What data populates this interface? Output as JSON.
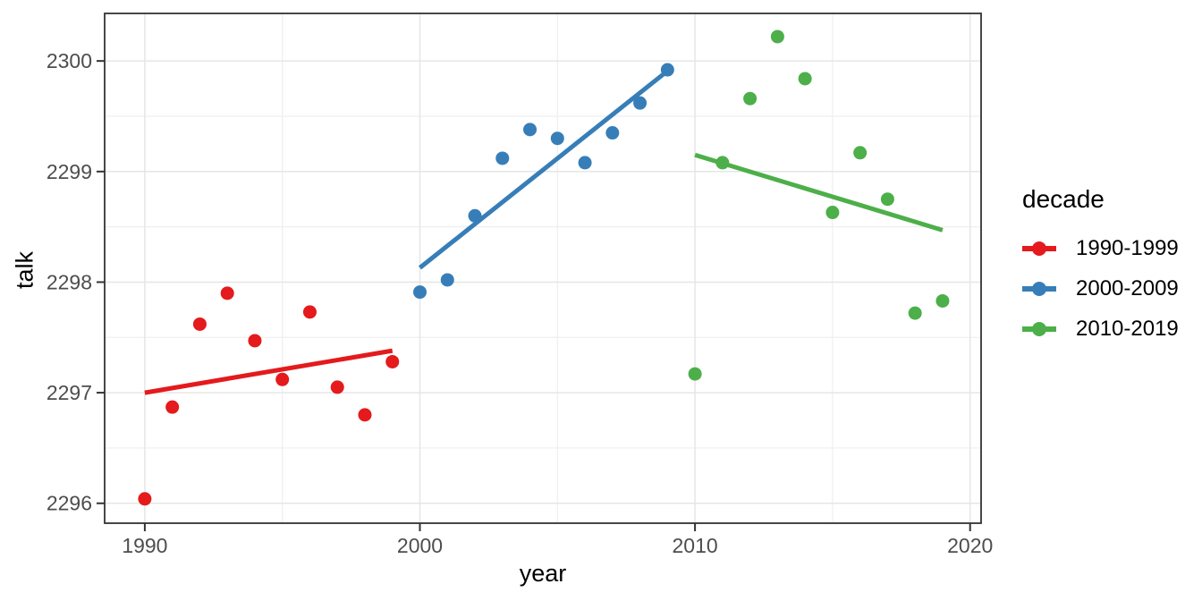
{
  "chart_data": {
    "type": "scatter",
    "title": "",
    "xlabel": "year",
    "ylabel": "talk",
    "xlim": [
      1988.54,
      2020.4
    ],
    "ylim": [
      2295.82,
      2300.43
    ],
    "x_major_ticks": [
      1990,
      2000,
      2010,
      2020
    ],
    "x_minor_ticks": [
      1995,
      2005,
      2015
    ],
    "y_major_ticks": [
      2296,
      2297,
      2298,
      2299,
      2300
    ],
    "y_minor_ticks": [
      2296.5,
      2297.5,
      2298.5,
      2299.5
    ],
    "grid": true,
    "legend_position": "right",
    "legend_title": "decade",
    "series": [
      {
        "name": "1990-1999",
        "color": "#E41A1C",
        "x": [
          1990,
          1991,
          1992,
          1993,
          1994,
          1995,
          1996,
          1997,
          1998,
          1999
        ],
        "y": [
          2296.04,
          2296.87,
          2297.62,
          2297.9,
          2297.47,
          2297.12,
          2297.73,
          2297.05,
          2296.8,
          2297.28
        ],
        "trend": {
          "x1": 1990,
          "y1": 2297.0,
          "x2": 1999,
          "y2": 2297.38
        }
      },
      {
        "name": "2000-2009",
        "color": "#377EB8",
        "x": [
          2000,
          2001,
          2002,
          2003,
          2004,
          2005,
          2006,
          2007,
          2008,
          2009
        ],
        "y": [
          2297.91,
          2298.02,
          2298.6,
          2299.12,
          2299.38,
          2299.3,
          2299.08,
          2299.35,
          2299.62,
          2299.92
        ],
        "trend": {
          "x1": 2000,
          "y1": 2298.13,
          "x2": 2009,
          "y2": 2299.91
        }
      },
      {
        "name": "2010-2019",
        "color": "#4DAF4A",
        "x": [
          2010,
          2011,
          2012,
          2013,
          2014,
          2015,
          2016,
          2017,
          2018,
          2019
        ],
        "y": [
          2297.17,
          2299.08,
          2299.66,
          2300.22,
          2299.84,
          2298.63,
          2299.17,
          2298.75,
          2297.72,
          2297.83
        ],
        "trend": {
          "x1": 2010,
          "y1": 2299.15,
          "x2": 2019,
          "y2": 2298.47
        }
      }
    ],
    "theme": {
      "panel_border_color": "#333333",
      "tick_color": "#333333",
      "tick_label_color": "#4D4D4D",
      "grid_major_color": "#E6E6E6",
      "grid_minor_color": "#EFEFEF",
      "background_color": "#FFFFFF"
    }
  }
}
